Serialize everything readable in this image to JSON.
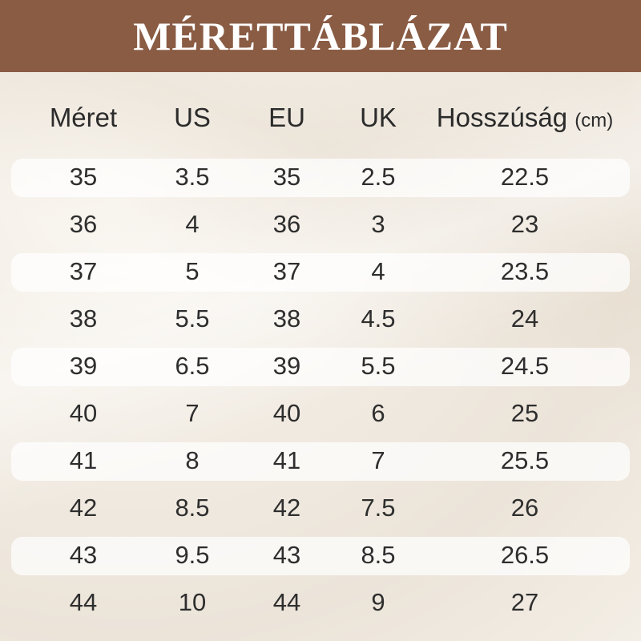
{
  "title": "MÉRETTÁBLÁZAT",
  "columns": [
    {
      "label": "Méret"
    },
    {
      "label": "US"
    },
    {
      "label": "EU"
    },
    {
      "label": "UK"
    },
    {
      "label": "Hosszúság",
      "unit": "(cm)"
    }
  ],
  "rows": [
    [
      "35",
      "3.5",
      "35",
      "2.5",
      "22.5"
    ],
    [
      "36",
      "4",
      "36",
      "3",
      "23"
    ],
    [
      "37",
      "5",
      "37",
      "4",
      "23.5"
    ],
    [
      "38",
      "5.5",
      "38",
      "4.5",
      "24"
    ],
    [
      "39",
      "6.5",
      "39",
      "5.5",
      "24.5"
    ],
    [
      "40",
      "7",
      "40",
      "6",
      "25"
    ],
    [
      "41",
      "8",
      "41",
      "7",
      "25.5"
    ],
    [
      "42",
      "8.5",
      "42",
      "7.5",
      "26"
    ],
    [
      "43",
      "9.5",
      "43",
      "8.5",
      "26.5"
    ],
    [
      "44",
      "10",
      "44",
      "9",
      "27"
    ]
  ],
  "colors": {
    "header_bg": "#8a5c44",
    "header_text": "#ffffff",
    "text": "#2e2e2e"
  }
}
